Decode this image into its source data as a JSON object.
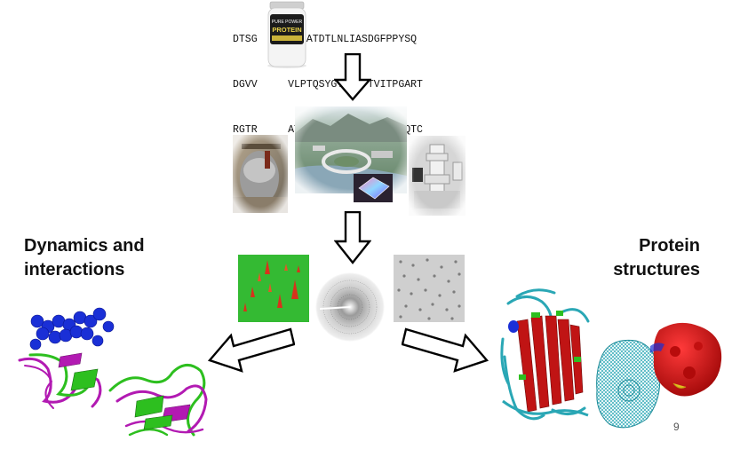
{
  "sequence": {
    "lines": [
      "DTSG     PPEATDTLNLIASDGFPPYSQ",
      "DGVV     VLPTQSYGYYHEYTVITPGART",
      "RGTR     ATQEDYYTGDHYATFSLIDQTC"
    ]
  },
  "product": {
    "label_top": "PURE POWER",
    "label_main": "PROTEIN"
  },
  "headings": {
    "left": [
      "Dynamics and",
      "interactions"
    ],
    "right": [
      "Protein",
      "structures"
    ]
  },
  "slide_number": "9",
  "colors": {
    "arrow_stroke": "#000000",
    "arrow_fill": "#ffffff",
    "field_green": "#2fb52f",
    "peak_red": "#d8321c",
    "sphere_blue": "#1a2fd6",
    "ribbon_green": "#2dbf1f",
    "ribbon_magenta": "#b21ab2",
    "structure_red": "#d01010",
    "mesh_teal": "#2aa7b5"
  },
  "icons": [
    "protein-jar-icon",
    "synchrotron-photo",
    "facility-photo",
    "electron-microscope-photo",
    "afm-map",
    "diffraction-pattern",
    "em-micrograph",
    "nmr-ensemble",
    "crystal-structure",
    "surface-mesh-model"
  ]
}
